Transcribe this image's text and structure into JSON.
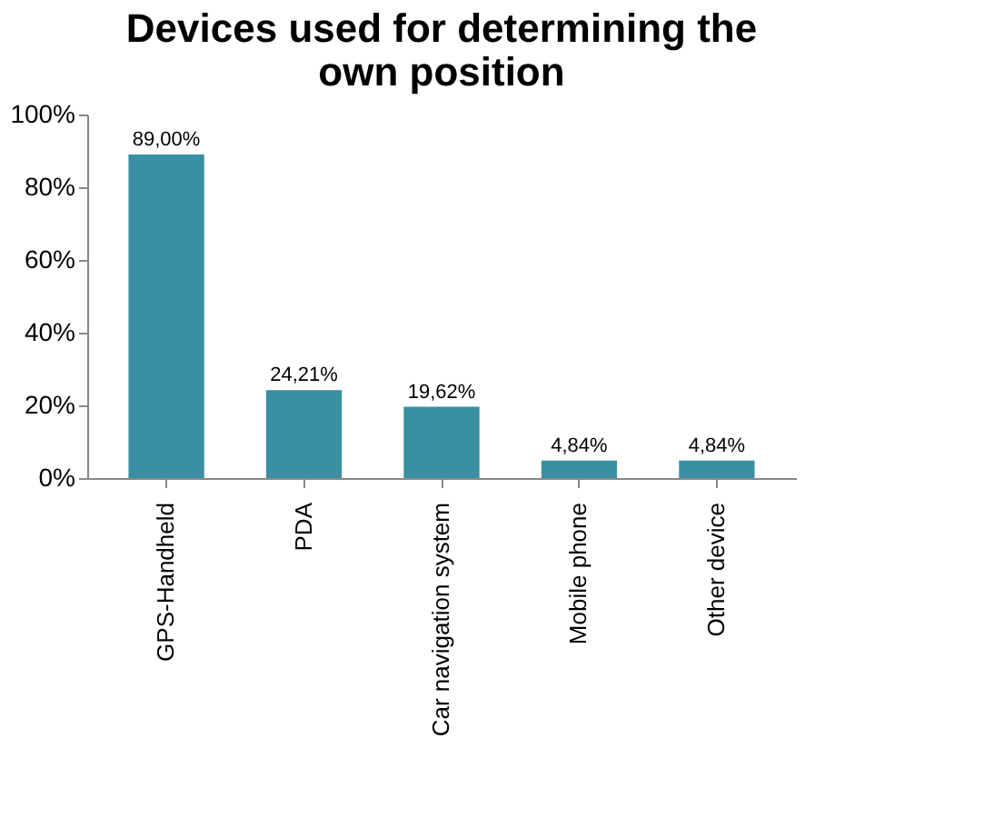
{
  "chart_data": {
    "type": "bar",
    "title": "Devices used for determining the\nown position",
    "categories": [
      "GPS-Handheld",
      "PDA",
      "Car navigation system",
      "Mobile phone",
      "Other device"
    ],
    "values": [
      89.0,
      24.21,
      19.62,
      4.84,
      4.84
    ],
    "value_labels": [
      "89,00%",
      "24,21%",
      "19,62%",
      "4,84%",
      "4,84%"
    ],
    "color": "#3a8fa3",
    "ylim": [
      0,
      100
    ],
    "yticks": [
      {
        "value": 0,
        "label": "0%"
      },
      {
        "value": 20,
        "label": "20%"
      },
      {
        "value": 40,
        "label": "40%"
      },
      {
        "value": 60,
        "label": "60%"
      },
      {
        "value": 80,
        "label": "80%"
      },
      {
        "value": 100,
        "label": "100%"
      }
    ],
    "grid": false
  }
}
